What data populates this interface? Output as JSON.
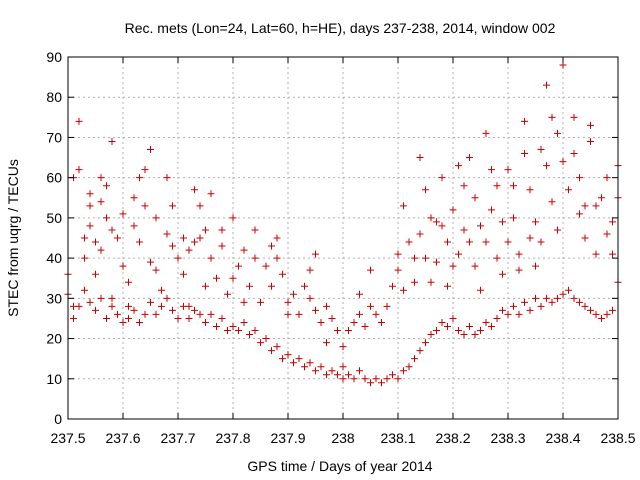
{
  "chart_data": {
    "type": "scatter",
    "title": "Rec. mets (Lon=24, Lat=60, h=HE), days 237-238, 2014, window 002",
    "xlabel": "GPS time / Days of year 2014",
    "ylabel": "STEC from uqrg / TECUs",
    "xlim": [
      237.5,
      238.5
    ],
    "ylim": [
      0,
      90
    ],
    "xticks": [
      "237.5",
      "237.6",
      "237.7",
      "237.8",
      "237.9",
      "238",
      "238.1",
      "238.2",
      "238.3",
      "238.4",
      "238.5"
    ],
    "yticks": [
      "0",
      "10",
      "20",
      "30",
      "40",
      "50",
      "60",
      "70",
      "80",
      "90"
    ],
    "grid": true,
    "marker": "+",
    "color": "#cc0000",
    "series": [
      {
        "points": [
          [
            237.5,
            36
          ],
          [
            237.5,
            31
          ],
          [
            237.51,
            28
          ],
          [
            237.51,
            60
          ],
          [
            237.52,
            74
          ],
          [
            237.52,
            62
          ],
          [
            237.53,
            45
          ],
          [
            237.53,
            40
          ],
          [
            237.54,
            56
          ],
          [
            237.54,
            53
          ],
          [
            237.54,
            48
          ],
          [
            237.55,
            44
          ],
          [
            237.55,
            36
          ],
          [
            237.56,
            60
          ],
          [
            237.56,
            54
          ],
          [
            237.56,
            42
          ],
          [
            237.57,
            58
          ],
          [
            237.57,
            50
          ],
          [
            237.58,
            69
          ],
          [
            237.58,
            47
          ],
          [
            237.58,
            30
          ],
          [
            237.59,
            45
          ],
          [
            237.6,
            51
          ],
          [
            237.6,
            38
          ],
          [
            237.61,
            25
          ],
          [
            237.61,
            34
          ],
          [
            237.62,
            55
          ],
          [
            237.62,
            48
          ],
          [
            237.63,
            60
          ],
          [
            237.63,
            44
          ],
          [
            237.64,
            62
          ],
          [
            237.64,
            53
          ],
          [
            237.65,
            67
          ],
          [
            237.65,
            39
          ],
          [
            237.66,
            50
          ],
          [
            237.66,
            37
          ],
          [
            237.67,
            32
          ],
          [
            237.68,
            60
          ],
          [
            237.68,
            46
          ],
          [
            237.69,
            43
          ],
          [
            237.69,
            53
          ],
          [
            237.7,
            40
          ],
          [
            237.71,
            45
          ],
          [
            237.71,
            36
          ],
          [
            237.72,
            42
          ],
          [
            237.72,
            28
          ],
          [
            237.73,
            57
          ],
          [
            237.73,
            44
          ],
          [
            237.74,
            45
          ],
          [
            237.74,
            53
          ],
          [
            237.75,
            47
          ],
          [
            237.75,
            33
          ],
          [
            237.76,
            56
          ],
          [
            237.76,
            40
          ],
          [
            237.77,
            35
          ],
          [
            237.78,
            47
          ],
          [
            237.78,
            43
          ],
          [
            237.79,
            31
          ],
          [
            237.8,
            50
          ],
          [
            237.8,
            35
          ],
          [
            237.81,
            38
          ],
          [
            237.82,
            42
          ],
          [
            237.82,
            29
          ],
          [
            237.83,
            33
          ],
          [
            237.84,
            47
          ],
          [
            237.84,
            40
          ],
          [
            237.85,
            29
          ],
          [
            237.86,
            38
          ],
          [
            237.87,
            43
          ],
          [
            237.87,
            33
          ],
          [
            237.88,
            45
          ],
          [
            237.88,
            40
          ],
          [
            237.89,
            36
          ],
          [
            237.9,
            29
          ],
          [
            237.9,
            26
          ],
          [
            237.91,
            31
          ],
          [
            237.92,
            26
          ],
          [
            237.93,
            33
          ],
          [
            237.94,
            37
          ],
          [
            237.94,
            30
          ],
          [
            237.95,
            41
          ],
          [
            237.95,
            27
          ],
          [
            237.96,
            24
          ],
          [
            237.97,
            28
          ],
          [
            237.97,
            19
          ],
          [
            237.98,
            25
          ],
          [
            237.99,
            22
          ],
          [
            238.0,
            18
          ],
          [
            238.0,
            13
          ],
          [
            238.01,
            22
          ],
          [
            238.02,
            24
          ],
          [
            238.03,
            31
          ],
          [
            238.03,
            26
          ],
          [
            238.04,
            23
          ],
          [
            238.05,
            37
          ],
          [
            238.05,
            28
          ],
          [
            238.06,
            26
          ],
          [
            238.07,
            24
          ],
          [
            238.08,
            28
          ],
          [
            238.09,
            33
          ],
          [
            238.1,
            41
          ],
          [
            238.1,
            37
          ],
          [
            238.11,
            53
          ],
          [
            238.11,
            32
          ],
          [
            238.12,
            44
          ],
          [
            238.13,
            40
          ],
          [
            238.13,
            34
          ],
          [
            238.14,
            46
          ],
          [
            238.14,
            65
          ],
          [
            238.15,
            57
          ],
          [
            238.15,
            40
          ],
          [
            238.16,
            50
          ],
          [
            238.16,
            34
          ],
          [
            238.17,
            49
          ],
          [
            238.17,
            39
          ],
          [
            238.18,
            60
          ],
          [
            238.18,
            48
          ],
          [
            238.19,
            44
          ],
          [
            238.19,
            33
          ],
          [
            238.2,
            52
          ],
          [
            238.2,
            38
          ],
          [
            238.21,
            63
          ],
          [
            238.21,
            41
          ],
          [
            238.22,
            58
          ],
          [
            238.22,
            47
          ],
          [
            238.23,
            65
          ],
          [
            238.23,
            44
          ],
          [
            238.24,
            55
          ],
          [
            238.24,
            38
          ],
          [
            238.25,
            48
          ],
          [
            238.25,
            32
          ],
          [
            238.26,
            71
          ],
          [
            238.26,
            44
          ],
          [
            238.27,
            62
          ],
          [
            238.27,
            52
          ],
          [
            238.28,
            58
          ],
          [
            238.28,
            40
          ],
          [
            238.29,
            49
          ],
          [
            238.29,
            36
          ],
          [
            238.3,
            62
          ],
          [
            238.3,
            44
          ],
          [
            238.31,
            58
          ],
          [
            238.31,
            50
          ],
          [
            238.32,
            41
          ],
          [
            238.32,
            37
          ],
          [
            238.33,
            74
          ],
          [
            238.33,
            66
          ],
          [
            238.34,
            57
          ],
          [
            238.34,
            45
          ],
          [
            238.35,
            49
          ],
          [
            238.35,
            38
          ],
          [
            238.36,
            67
          ],
          [
            238.36,
            44
          ],
          [
            238.37,
            83
          ],
          [
            238.37,
            63
          ],
          [
            238.38,
            75
          ],
          [
            238.38,
            54
          ],
          [
            238.39,
            71
          ],
          [
            238.39,
            47
          ],
          [
            238.4,
            88
          ],
          [
            238.4,
            64
          ],
          [
            238.41,
            57
          ],
          [
            238.42,
            75
          ],
          [
            238.42,
            66
          ],
          [
            238.43,
            60
          ],
          [
            238.43,
            51
          ],
          [
            238.44,
            53
          ],
          [
            238.44,
            45
          ],
          [
            238.45,
            73
          ],
          [
            238.45,
            69
          ],
          [
            238.46,
            53
          ],
          [
            238.46,
            41
          ],
          [
            238.47,
            55
          ],
          [
            238.48,
            60
          ],
          [
            238.48,
            46
          ],
          [
            238.49,
            49
          ],
          [
            238.49,
            41
          ],
          [
            238.5,
            63
          ],
          [
            238.5,
            55
          ],
          [
            237.51,
            25
          ],
          [
            237.52,
            28
          ],
          [
            237.53,
            32
          ],
          [
            237.54,
            29
          ],
          [
            237.55,
            27
          ],
          [
            237.56,
            30
          ],
          [
            237.57,
            25
          ],
          [
            237.58,
            28
          ],
          [
            237.59,
            26
          ],
          [
            237.6,
            24
          ],
          [
            237.61,
            28
          ],
          [
            237.62,
            27
          ],
          [
            237.63,
            24
          ],
          [
            237.64,
            26
          ],
          [
            237.65,
            29
          ],
          [
            237.66,
            26
          ],
          [
            237.67,
            28
          ],
          [
            237.68,
            30
          ],
          [
            237.69,
            27
          ],
          [
            237.7,
            25
          ],
          [
            237.71,
            28
          ],
          [
            237.72,
            25
          ],
          [
            237.73,
            27
          ],
          [
            237.74,
            26
          ],
          [
            237.75,
            24
          ],
          [
            237.76,
            26
          ],
          [
            237.77,
            23
          ],
          [
            237.78,
            25
          ],
          [
            237.79,
            22
          ],
          [
            237.8,
            23
          ],
          [
            237.81,
            22
          ],
          [
            237.82,
            24
          ],
          [
            237.83,
            21
          ],
          [
            237.84,
            22
          ],
          [
            237.85,
            19
          ],
          [
            237.86,
            20
          ],
          [
            237.87,
            17
          ],
          [
            237.88,
            18
          ],
          [
            237.89,
            15
          ],
          [
            237.9,
            16
          ],
          [
            237.91,
            14
          ],
          [
            237.92,
            15
          ],
          [
            237.93,
            13
          ],
          [
            237.94,
            14
          ],
          [
            237.95,
            12
          ],
          [
            237.96,
            13
          ],
          [
            237.97,
            11
          ],
          [
            237.98,
            12
          ],
          [
            237.99,
            11
          ],
          [
            238.0,
            10
          ],
          [
            238.01,
            11
          ],
          [
            238.02,
            10
          ],
          [
            238.03,
            12
          ],
          [
            238.04,
            10
          ],
          [
            238.05,
            9
          ],
          [
            238.06,
            10
          ],
          [
            238.07,
            9
          ],
          [
            238.08,
            10
          ],
          [
            238.09,
            11
          ],
          [
            238.1,
            10
          ],
          [
            238.11,
            12
          ],
          [
            238.12,
            13
          ],
          [
            238.13,
            15
          ],
          [
            238.14,
            17
          ],
          [
            238.15,
            19
          ],
          [
            238.16,
            21
          ],
          [
            238.17,
            22
          ],
          [
            238.18,
            24
          ],
          [
            238.19,
            23
          ],
          [
            238.2,
            25
          ],
          [
            238.21,
            22
          ],
          [
            238.22,
            21
          ],
          [
            238.23,
            23
          ],
          [
            238.24,
            21
          ],
          [
            238.25,
            22
          ],
          [
            238.26,
            24
          ],
          [
            238.27,
            23
          ],
          [
            238.28,
            25
          ],
          [
            238.29,
            27
          ],
          [
            238.3,
            26
          ],
          [
            238.31,
            28
          ],
          [
            238.32,
            26
          ],
          [
            238.33,
            29
          ],
          [
            238.34,
            27
          ],
          [
            238.35,
            30
          ],
          [
            238.36,
            28
          ],
          [
            238.37,
            30
          ],
          [
            238.38,
            29
          ],
          [
            238.39,
            30
          ],
          [
            238.4,
            31
          ],
          [
            238.41,
            32
          ],
          [
            238.42,
            30
          ],
          [
            238.43,
            29
          ],
          [
            238.44,
            28
          ],
          [
            238.45,
            27
          ],
          [
            238.46,
            26
          ],
          [
            238.47,
            25
          ],
          [
            238.48,
            26
          ],
          [
            238.49,
            27
          ],
          [
            238.5,
            34
          ]
        ]
      }
    ]
  }
}
